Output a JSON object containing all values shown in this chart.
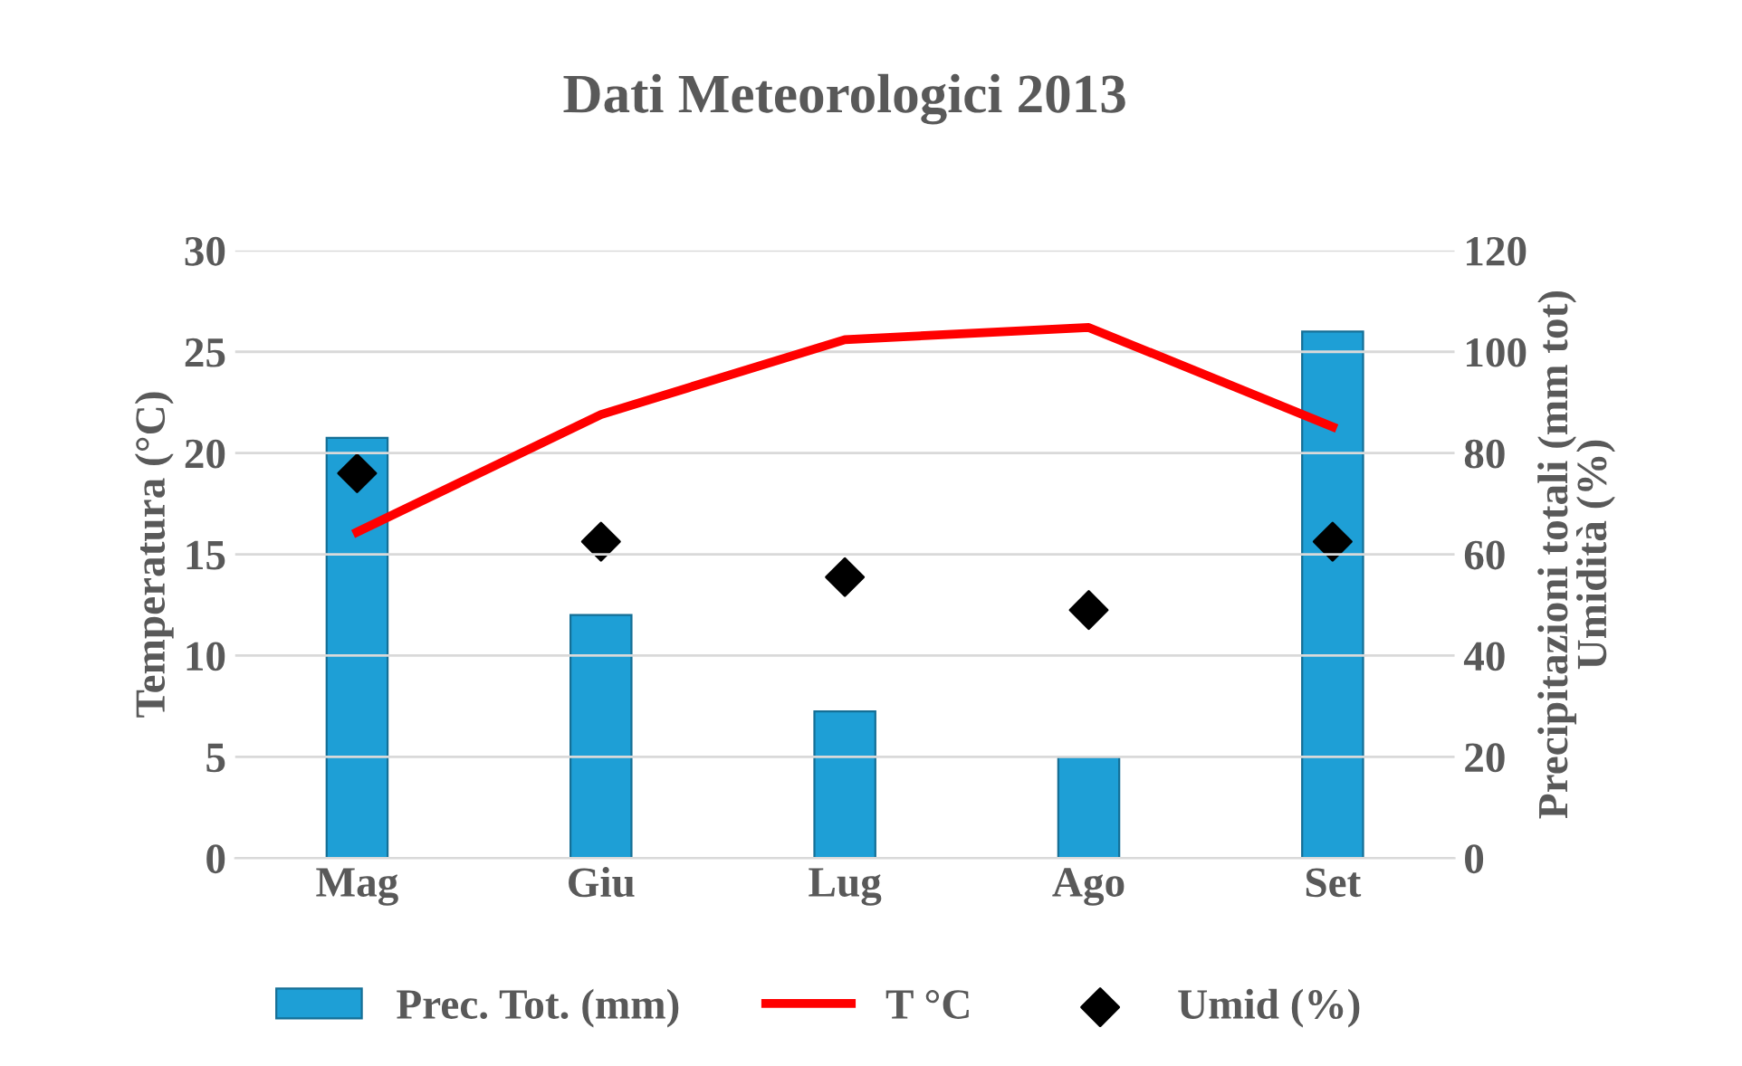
{
  "chart_data": {
    "type": "bar",
    "title": "Dati Meteorologici 2013",
    "ylabel": "Temperatura (°C)",
    "y2label": "Precipitazioni totali (mm tot)\nUmidità (%)",
    "categories": [
      "Mag",
      "Giu",
      "Lug",
      "Ago",
      "Set"
    ],
    "series": [
      {
        "name": "Prec. Tot. (mm)",
        "axis": "y2",
        "color": "#1e9fd6",
        "values": [
          83,
          48,
          29,
          20,
          104
        ]
      },
      {
        "name": "T °C",
        "type": "line",
        "color": "#ff0000",
        "marker": "none",
        "values": [
          16.1,
          21.9,
          25.6,
          26.2,
          21.3
        ]
      },
      {
        "name": "Umid (%)",
        "type": "scatter",
        "axis": "y2",
        "color": "#000000",
        "marker": "diamond",
        "values": [
          76,
          62.5,
          55.5,
          49,
          62.5
        ]
      }
    ],
    "ylim": [
      0,
      30
    ],
    "yticks": [
      0,
      5,
      10,
      15,
      20,
      25,
      30
    ],
    "y2lim": [
      0,
      120
    ],
    "y2ticks": [
      0,
      20,
      40,
      60,
      80,
      100,
      120
    ],
    "grid": "y",
    "legend": "bottom"
  }
}
